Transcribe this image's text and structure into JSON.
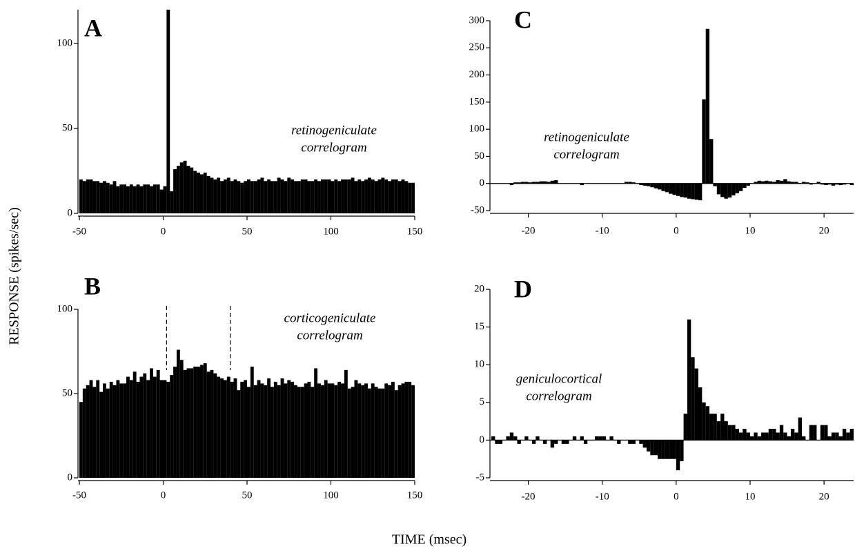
{
  "ylabel": "RESPONSE (spikes/sec)",
  "xlabel": "TIME (msec)",
  "chart_data": [
    {
      "type": "histogram",
      "panel": "A",
      "annotation": [
        "retinogeniculate",
        "correlogram"
      ],
      "color": "#000000",
      "bins": [
        -50,
        -48,
        -46,
        -44,
        -42,
        -40,
        -38,
        -36,
        -34,
        -32,
        -30,
        -28,
        -26,
        -24,
        -22,
        -20,
        -18,
        -16,
        -14,
        -12,
        -10,
        -8,
        -6,
        -4,
        -2,
        0,
        2,
        4,
        6,
        8,
        10,
        12,
        14,
        16,
        18,
        20,
        22,
        24,
        26,
        28,
        30,
        32,
        34,
        36,
        38,
        40,
        42,
        44,
        46,
        48,
        50,
        52,
        54,
        56,
        58,
        60,
        62,
        64,
        66,
        68,
        70,
        72,
        74,
        76,
        78,
        80,
        82,
        84,
        86,
        88,
        90,
        92,
        94,
        96,
        98,
        100,
        102,
        104,
        106,
        108,
        110,
        112,
        114,
        116,
        118,
        120,
        122,
        124,
        126,
        128,
        130,
        132,
        134,
        136,
        138,
        140,
        142,
        144,
        146,
        148,
        150
      ],
      "values": [
        20,
        19,
        20,
        20,
        19,
        19,
        18,
        19,
        18,
        17,
        19,
        16,
        17,
        17,
        16,
        17,
        16,
        17,
        16,
        17,
        17,
        16,
        17,
        17,
        14,
        16,
        120,
        13,
        26,
        28,
        30,
        31,
        28,
        27,
        25,
        24,
        23,
        24,
        22,
        21,
        20,
        21,
        19,
        20,
        21,
        19,
        20,
        19,
        18,
        19,
        20,
        19,
        19,
        20,
        21,
        19,
        20,
        19,
        19,
        21,
        20,
        19,
        21,
        20,
        19,
        19,
        20,
        20,
        19,
        19,
        20,
        19,
        20,
        20,
        20,
        19,
        20,
        19,
        20,
        20,
        20,
        21,
        19,
        20,
        19,
        20,
        21,
        20,
        19,
        20,
        21,
        20,
        19,
        20,
        20,
        19,
        20,
        19,
        18,
        18
      ],
      "xlim": [
        -50,
        150
      ],
      "xticks": [
        -50,
        0,
        50,
        100,
        150
      ],
      "ylim": [
        0,
        120
      ],
      "yticks": [
        0,
        50,
        100
      ]
    },
    {
      "type": "histogram",
      "panel": "B",
      "annotation": [
        "corticogeniculate",
        "correlogram"
      ],
      "color": "#000000",
      "bins": [
        -50,
        -48,
        -46,
        -44,
        -42,
        -40,
        -38,
        -36,
        -34,
        -32,
        -30,
        -28,
        -26,
        -24,
        -22,
        -20,
        -18,
        -16,
        -14,
        -12,
        -10,
        -8,
        -6,
        -4,
        -2,
        0,
        2,
        4,
        6,
        8,
        10,
        12,
        14,
        16,
        18,
        20,
        22,
        24,
        26,
        28,
        30,
        32,
        34,
        36,
        38,
        40,
        42,
        44,
        46,
        48,
        50,
        52,
        54,
        56,
        58,
        60,
        62,
        64,
        66,
        68,
        70,
        72,
        74,
        76,
        78,
        80,
        82,
        84,
        86,
        88,
        90,
        92,
        94,
        96,
        98,
        100,
        102,
        104,
        106,
        108,
        110,
        112,
        114,
        116,
        118,
        120,
        122,
        124,
        126,
        128,
        130,
        132,
        134,
        136,
        138,
        140,
        142,
        144,
        146,
        148,
        150
      ],
      "values": [
        45,
        53,
        55,
        58,
        54,
        58,
        51,
        56,
        53,
        57,
        55,
        58,
        56,
        56,
        60,
        58,
        63,
        57,
        60,
        62,
        58,
        65,
        60,
        64,
        58,
        58,
        57,
        61,
        66,
        76,
        70,
        64,
        65,
        65,
        66,
        66,
        67,
        68,
        63,
        64,
        62,
        60,
        59,
        58,
        60,
        57,
        59,
        52,
        57,
        58,
        54,
        66,
        55,
        58,
        56,
        55,
        59,
        54,
        57,
        55,
        59,
        56,
        58,
        57,
        55,
        54,
        54,
        56,
        57,
        54,
        65,
        56,
        55,
        58,
        56,
        56,
        55,
        57,
        56,
        64,
        53,
        54,
        58,
        56,
        55,
        56,
        53,
        56,
        54,
        53,
        53,
        56,
        55,
        57,
        52,
        55,
        56,
        57,
        57,
        55
      ],
      "vlines": [
        2,
        40
      ],
      "xlim": [
        -50,
        150
      ],
      "xticks": [
        -50,
        0,
        50,
        100,
        150
      ],
      "ylim": [
        0,
        100
      ],
      "yticks": [
        0,
        50,
        100
      ]
    },
    {
      "type": "histogram",
      "panel": "C",
      "annotation": [
        "retinogeniculate",
        "correlogram"
      ],
      "color": "#000000",
      "bins": [
        -25,
        -24.5,
        -24,
        -23.5,
        -23,
        -22.5,
        -22,
        -21.5,
        -21,
        -20.5,
        -20,
        -19.5,
        -19,
        -18.5,
        -18,
        -17.5,
        -17,
        -16.5,
        -16,
        -15.5,
        -15,
        -14.5,
        -14,
        -13.5,
        -13,
        -12.5,
        -12,
        -11.5,
        -11,
        -10.5,
        -10,
        -9.5,
        -9,
        -8.5,
        -8,
        -7.5,
        -7,
        -6.5,
        -6,
        -5.5,
        -5,
        -4.5,
        -4,
        -3.5,
        -3,
        -2.5,
        -2,
        -1.5,
        -1,
        -0.5,
        0,
        0.5,
        1,
        1.5,
        2,
        2.5,
        3,
        3.5,
        4,
        4.5,
        5,
        5.5,
        6,
        6.5,
        7,
        7.5,
        8,
        8.5,
        9,
        9.5,
        10,
        10.5,
        11,
        11.5,
        12,
        12.5,
        13,
        13.5,
        14,
        14.5,
        15,
        15.5,
        16,
        16.5,
        17,
        17.5,
        18,
        18.5,
        19,
        19.5,
        20,
        20.5,
        21,
        21.5,
        22,
        22.5,
        23,
        23.5,
        24
      ],
      "values": [
        0,
        0,
        0,
        0,
        0,
        -3,
        2,
        2,
        3,
        3,
        2,
        3,
        3,
        4,
        4,
        3,
        5,
        6,
        0,
        0,
        0,
        0,
        0,
        0,
        -3,
        0,
        0,
        0,
        0,
        0,
        0,
        0,
        0,
        0,
        0,
        0,
        3,
        3,
        2,
        0,
        -3,
        -4,
        -5,
        -7,
        -9,
        -11,
        -14,
        -16,
        -19,
        -21,
        -23,
        -25,
        -26,
        -28,
        -29,
        -30,
        -31,
        155,
        285,
        82,
        -5,
        -20,
        -25,
        -28,
        -26,
        -22,
        -18,
        -14,
        -8,
        -4,
        0,
        3,
        5,
        4,
        5,
        4,
        3,
        6,
        5,
        8,
        4,
        3,
        3,
        1,
        3,
        2,
        -2,
        0,
        3,
        -2,
        -3,
        -2,
        -4,
        -2,
        -3,
        -2,
        0,
        -3
      ],
      "xlim": [
        -25,
        24
      ],
      "xticks": [
        -20,
        -10,
        0,
        10,
        20
      ],
      "ylim": [
        -50,
        300
      ],
      "yticks": [
        -50,
        0,
        50,
        100,
        150,
        200,
        250,
        300
      ]
    },
    {
      "type": "histogram",
      "panel": "D",
      "annotation": [
        "geniculocortical",
        "correlogram"
      ],
      "color": "#000000",
      "bins": [
        -25,
        -24.5,
        -24,
        -23.5,
        -23,
        -22.5,
        -22,
        -21.5,
        -21,
        -20.5,
        -20,
        -19.5,
        -19,
        -18.5,
        -18,
        -17.5,
        -17,
        -16.5,
        -16,
        -15.5,
        -15,
        -14.5,
        -14,
        -13.5,
        -13,
        -12.5,
        -12,
        -11.5,
        -11,
        -10.5,
        -10,
        -9.5,
        -9,
        -8.5,
        -8,
        -7.5,
        -7,
        -6.5,
        -6,
        -5.5,
        -5,
        -4.5,
        -4,
        -3.5,
        -3,
        -2.5,
        -2,
        -1.5,
        -1,
        -0.5,
        0,
        0.5,
        1,
        1.5,
        2,
        2.5,
        3,
        3.5,
        4,
        4.5,
        5,
        5.5,
        6,
        6.5,
        7,
        7.5,
        8,
        8.5,
        9,
        9.5,
        10,
        10.5,
        11,
        11.5,
        12,
        12.5,
        13,
        13.5,
        14,
        14.5,
        15,
        15.5,
        16,
        16.5,
        17,
        17.5,
        18,
        18.5,
        19,
        19.5,
        20,
        20.5,
        21,
        21.5,
        22,
        22.5,
        23,
        23.5,
        24
      ],
      "values": [
        0.5,
        -0.5,
        -0.5,
        0,
        0.5,
        1,
        0.5,
        -0.5,
        0,
        0.5,
        0,
        -0.5,
        0.5,
        0,
        -0.5,
        0,
        -1,
        -0.5,
        0,
        -0.5,
        -0.5,
        0,
        0.5,
        0,
        0.5,
        -0.5,
        0,
        0,
        0.5,
        0.5,
        0.5,
        0,
        0.5,
        0,
        -0.5,
        0,
        0,
        -0.5,
        -0.5,
        0,
        -0.5,
        -1,
        -1.5,
        -2,
        -2,
        -2.5,
        -2.5,
        -2.5,
        -2.5,
        -2.5,
        -4,
        -2.8,
        3.5,
        16,
        11,
        9.5,
        7,
        5,
        4.5,
        3.5,
        3.5,
        2.5,
        3.5,
        2.5,
        2,
        2,
        1.5,
        1,
        1.5,
        1,
        0.5,
        1,
        0.5,
        1,
        1,
        1.5,
        1.5,
        1,
        2,
        1,
        0.5,
        1.5,
        1,
        3,
        0.5,
        0,
        2,
        2,
        0,
        2,
        2,
        0.5,
        1,
        1,
        0.5,
        1.5,
        1,
        1.5
      ],
      "xlim": [
        -25,
        24
      ],
      "xticks": [
        -20,
        -10,
        0,
        10,
        20
      ],
      "ylim": [
        -5,
        20
      ],
      "yticks": [
        -5,
        0,
        5,
        10,
        15,
        20
      ]
    }
  ]
}
